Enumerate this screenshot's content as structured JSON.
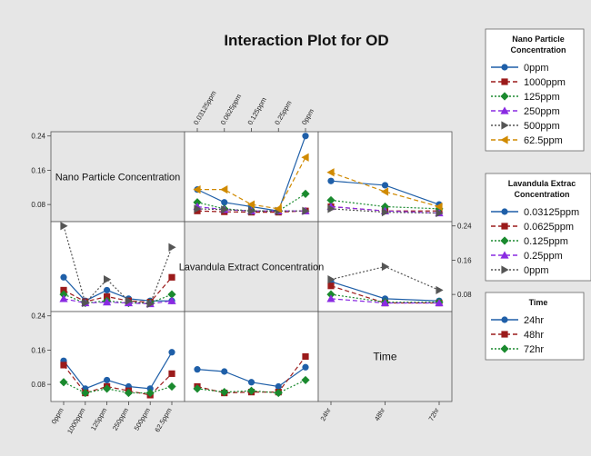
{
  "chart_data": {
    "type": "line",
    "title": "Interaction Plot for OD",
    "factors": {
      "nano": {
        "name": "Nano Particle Concentration",
        "levels": [
          "0ppm",
          "1000ppm",
          "125ppm",
          "250ppm",
          "500ppm",
          "62.5ppm"
        ],
        "colors": [
          "#1f5fa8",
          "#9b1b1b",
          "#1a8a2e",
          "#8a2be2",
          "#555555",
          "#d08a00"
        ],
        "markers": [
          "circle",
          "square",
          "diamond",
          "triangle",
          "tri-right",
          "tri-left"
        ],
        "axis_ticks": [
          "0ppm",
          "1000ppm",
          "125ppm",
          "250ppm",
          "500ppm",
          "62.5ppm"
        ]
      },
      "lav": {
        "name": "Lavandula Extract Concentration",
        "legend_title": [
          "Lavandula Extrac",
          "Concentration"
        ],
        "levels": [
          "0.03125ppm",
          "0.0625ppm",
          "0.125ppm",
          "0.25ppm",
          "0ppm"
        ],
        "colors": [
          "#1f5fa8",
          "#9b1b1b",
          "#1a8a2e",
          "#8a2be2",
          "#555555"
        ],
        "markers": [
          "circle",
          "square",
          "diamond",
          "triangle",
          "tri-right"
        ],
        "axis_ticks": [
          "0.03125ppm",
          "0.0625ppm",
          "0.125ppm",
          "0.25ppm",
          "0ppm"
        ]
      },
      "time": {
        "name": "Time",
        "levels": [
          "24hr",
          "48hr",
          "72hr"
        ],
        "colors": [
          "#1f5fa8",
          "#9b1b1b",
          "#1a8a2e"
        ],
        "markers": [
          "circle",
          "square",
          "diamond"
        ],
        "axis_ticks": [
          "24hr",
          "48hr",
          "72hr"
        ]
      }
    },
    "legend_titles": {
      "nano": [
        "Nano Particle",
        "Concentration"
      ],
      "lav": [
        "Lavandula Extrac",
        "Concentration"
      ],
      "time": [
        "Time"
      ]
    },
    "y_ticks": [
      "0.24",
      "0.16",
      "0.08"
    ],
    "y_values": [
      0.24,
      0.16,
      0.08
    ],
    "ylim": [
      0.04,
      0.25
    ],
    "panels": [
      {
        "row": "nano",
        "col": "lav",
        "series": [
          {
            "values": [
              0.115,
              0.085,
              0.075,
              0.065,
              0.24
            ]
          },
          {
            "values": [
              0.065,
              0.063,
              0.062,
              0.062,
              0.065
            ]
          },
          {
            "values": [
              0.085,
              0.07,
              0.065,
              0.065,
              0.105
            ]
          },
          {
            "values": [
              0.075,
              0.068,
              0.065,
              0.065,
              0.065
            ]
          },
          {
            "values": [
              0.07,
              0.068,
              0.065,
              0.065,
              0.065
            ]
          },
          {
            "values": [
              0.115,
              0.115,
              0.08,
              0.07,
              0.19
            ]
          }
        ]
      },
      {
        "row": "nano",
        "col": "time",
        "series": [
          {
            "values": [
              0.135,
              0.125,
              0.08
            ]
          },
          {
            "values": [
              0.075,
              0.065,
              0.065
            ]
          },
          {
            "values": [
              0.09,
              0.075,
              0.07
            ]
          },
          {
            "values": [
              0.075,
              0.065,
              0.06
            ]
          },
          {
            "values": [
              0.07,
              0.062,
              0.06
            ]
          },
          {
            "values": [
              0.155,
              0.11,
              0.075
            ]
          }
        ]
      },
      {
        "row": "lav",
        "col": "nano",
        "series": [
          {
            "values": [
              0.12,
              0.065,
              0.09,
              0.07,
              0.065,
              0.065
            ]
          },
          {
            "values": [
              0.09,
              0.063,
              0.075,
              0.065,
              0.062,
              0.12
            ]
          },
          {
            "values": [
              0.08,
              0.06,
              0.065,
              0.06,
              0.06,
              0.08
            ]
          },
          {
            "values": [
              0.07,
              0.06,
              0.062,
              0.06,
              0.058,
              0.065
            ]
          },
          {
            "values": [
              0.24,
              0.06,
              0.115,
              0.065,
              0.058,
              0.19
            ]
          }
        ]
      },
      {
        "row": "lav",
        "col": "time",
        "series": [
          {
            "values": [
              0.11,
              0.07,
              0.065
            ]
          },
          {
            "values": [
              0.1,
              0.06,
              0.06
            ]
          },
          {
            "values": [
              0.08,
              0.062,
              0.062
            ]
          },
          {
            "values": [
              0.07,
              0.06,
              0.06
            ]
          },
          {
            "values": [
              0.115,
              0.145,
              0.09
            ]
          }
        ]
      },
      {
        "row": "time",
        "col": "nano",
        "series": [
          {
            "values": [
              0.135,
              0.07,
              0.09,
              0.075,
              0.07,
              0.155
            ]
          },
          {
            "values": [
              0.125,
              0.06,
              0.075,
              0.065,
              0.055,
              0.105
            ]
          },
          {
            "values": [
              0.085,
              0.06,
              0.07,
              0.06,
              0.06,
              0.075
            ]
          }
        ]
      },
      {
        "row": "time",
        "col": "lav",
        "series": [
          {
            "values": [
              0.115,
              0.11,
              0.085,
              0.075,
              0.12
            ]
          },
          {
            "values": [
              0.075,
              0.06,
              0.062,
              0.062,
              0.145
            ]
          },
          {
            "values": [
              0.07,
              0.062,
              0.065,
              0.06,
              0.09
            ]
          }
        ]
      }
    ]
  }
}
